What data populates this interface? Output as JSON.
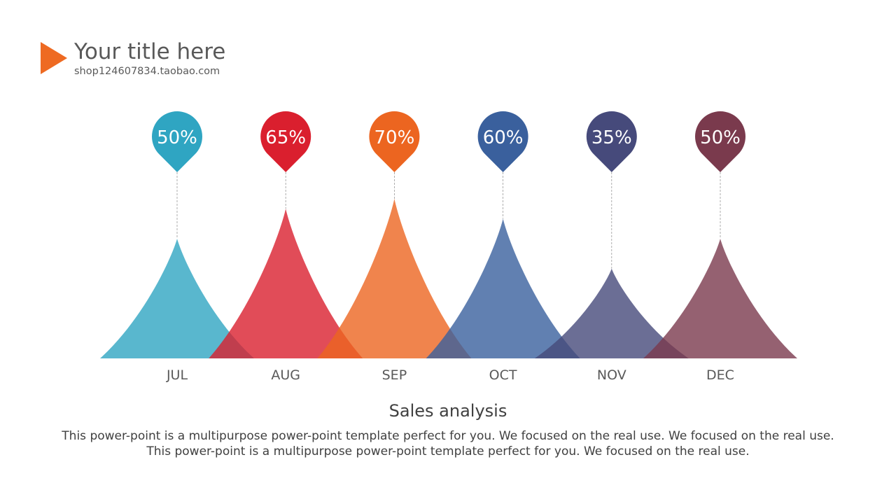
{
  "header": {
    "title": "Your title here",
    "subtitle": "shop124607834.taobao.com",
    "accent_color": "#EE6A22"
  },
  "chart_data": {
    "type": "area",
    "categories": [
      "JUL",
      "AUG",
      "SEP",
      "OCT",
      "NOV",
      "DEC"
    ],
    "values": [
      50,
      65,
      70,
      60,
      35,
      50
    ],
    "value_labels": [
      "50%",
      "65%",
      "70%",
      "60%",
      "35%",
      "50%"
    ],
    "colors": [
      "#2FA5C2",
      "#DA1F2E",
      "#EC6520",
      "#3A609D",
      "#464A7B",
      "#7A3A4D"
    ],
    "title": "Sales analysis",
    "ylim": [
      0,
      100
    ],
    "grid": false,
    "legend": "none"
  },
  "description": "This power-point is a multipurpose power-point template perfect for you. We focused on the real use. We focused on the real use. This power-point is a multipurpose power-point template perfect for you. We focused on the real use."
}
